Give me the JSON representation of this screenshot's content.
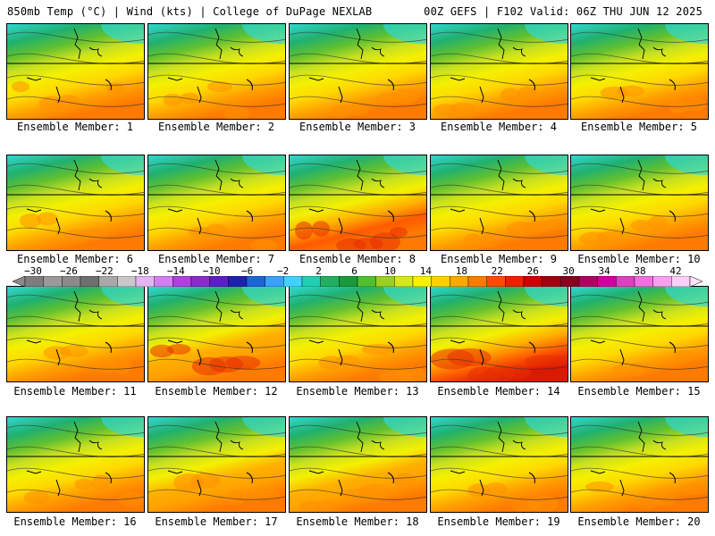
{
  "header": {
    "title_left": "850mb Temp (°C) | Wind (kts) | College of DuPage NEXLAB",
    "title_right": "00Z GEFS | F102 Valid: 06Z THU JUN 12 2025"
  },
  "panels": [
    {
      "label": "Ensemble Member: 1",
      "warmth": 0.35
    },
    {
      "label": "Ensemble Member: 2",
      "warmth": 0.38
    },
    {
      "label": "Ensemble Member: 3",
      "warmth": 0.4
    },
    {
      "label": "Ensemble Member: 4",
      "warmth": 0.33
    },
    {
      "label": "Ensemble Member: 5",
      "warmth": 0.35
    },
    {
      "label": "Ensemble Member: 6",
      "warmth": 0.3
    },
    {
      "label": "Ensemble Member: 7",
      "warmth": 0.28
    },
    {
      "label": "Ensemble Member: 8",
      "warmth": 0.7
    },
    {
      "label": "Ensemble Member: 9",
      "warmth": 0.5
    },
    {
      "label": "Ensemble Member: 10",
      "warmth": 0.45
    },
    {
      "label": "Ensemble Member: 11",
      "warmth": 0.4
    },
    {
      "label": "Ensemble Member: 12",
      "warmth": 0.6
    },
    {
      "label": "Ensemble Member: 13",
      "warmth": 0.5
    },
    {
      "label": "Ensemble Member: 14",
      "warmth": 0.8
    },
    {
      "label": "Ensemble Member: 15",
      "warmth": 0.25
    },
    {
      "label": "Ensemble Member: 16",
      "warmth": 0.4
    },
    {
      "label": "Ensemble Member: 17",
      "warmth": 0.55
    },
    {
      "label": "Ensemble Member: 18",
      "warmth": 0.55
    },
    {
      "label": "Ensemble Member: 19",
      "warmth": 0.45
    },
    {
      "label": "Ensemble Member: 20",
      "warmth": 0.35
    }
  ],
  "colorbar": {
    "labels": [
      "−30",
      "−26",
      "−22",
      "−18",
      "−14",
      "−10",
      "−6",
      "−2",
      "2",
      "6",
      "10",
      "14",
      "18",
      "22",
      "26",
      "30",
      "34",
      "38",
      "42"
    ],
    "colors": [
      "#7d7d7d",
      "#9a9a9a",
      "#8a8a8a",
      "#6f6f6f",
      "#a8a8a8",
      "#c8c8c8",
      "#e3b4f0",
      "#d080f0",
      "#b040e0",
      "#8a2bd0",
      "#5a1fc8",
      "#2020b0",
      "#1e64d8",
      "#3aa0ff",
      "#40d2ff",
      "#20d0b0",
      "#20b060",
      "#1a9a3a",
      "#50c030",
      "#9ad020",
      "#d4e820",
      "#f8f000",
      "#ffd000",
      "#ffa800",
      "#ff7a00",
      "#ff4a00",
      "#ee2000",
      "#cc0000",
      "#a00010",
      "#8a0020",
      "#b00060",
      "#d000a0",
      "#e040c0",
      "#f070e0",
      "#f8a0f0",
      "#fbd0f8"
    ]
  }
}
